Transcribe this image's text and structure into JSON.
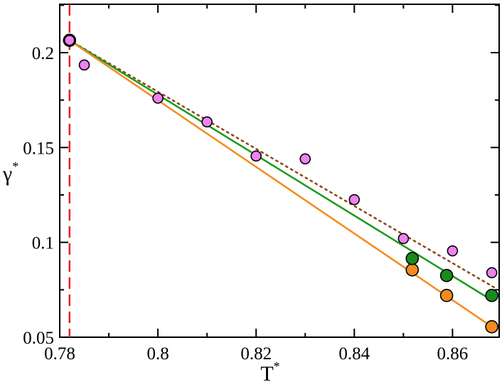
{
  "chart_data": {
    "type": "scatter",
    "xlabel": "T",
    "xlabel_superscript": "*",
    "ylabel": "γ",
    "ylabel_superscript": "*",
    "xlim": [
      0.78,
      0.8695
    ],
    "ylim": [
      0.05,
      0.2255
    ],
    "x_ticks": [
      0.78,
      0.8,
      0.82,
      0.84,
      0.86
    ],
    "x_tick_labels": [
      "0.78",
      "0.8",
      "0.82",
      "0.84",
      "0.86"
    ],
    "y_ticks": [
      0.05,
      0.1,
      0.15,
      0.2
    ],
    "y_tick_labels": [
      "0.05",
      "0.1",
      "0.15",
      "0.2"
    ],
    "grid": false,
    "vertical_reference_line": {
      "x": 0.782,
      "color": "#e8202a",
      "style": "dashed"
    },
    "series": [
      {
        "marker_color": "#ee82ee",
        "x": [
          0.782,
          0.785,
          0.8,
          0.81,
          0.82,
          0.83,
          0.84,
          0.85,
          0.86,
          0.868
        ],
        "y": [
          0.2065,
          0.1935,
          0.176,
          0.1635,
          0.1455,
          0.144,
          0.1225,
          0.102,
          0.0955,
          0.084
        ],
        "fit": {
          "x": [
            0.782,
            0.869
          ],
          "y": [
            0.2065,
            0.0755
          ],
          "color": "#8b4513",
          "style": "dotted"
        }
      },
      {
        "marker_color": "#1a8a1a",
        "x": [
          0.782,
          0.8518,
          0.8588,
          0.868
        ],
        "y": [
          0.2065,
          0.0915,
          0.0825,
          0.072
        ],
        "fit": {
          "x": [
            0.782,
            0.868
          ],
          "y": [
            0.2065,
            0.0695
          ],
          "color": "#1e9a1e",
          "style": "solid"
        }
      },
      {
        "marker_color": "#f58a1f",
        "x": [
          0.8518,
          0.8588,
          0.868
        ],
        "y": [
          0.0855,
          0.072,
          0.0555
        ],
        "fit": {
          "x": [
            0.782,
            0.868
          ],
          "y": [
            0.2065,
            0.0555
          ],
          "color": "#f58a1f",
          "style": "solid"
        }
      }
    ]
  }
}
